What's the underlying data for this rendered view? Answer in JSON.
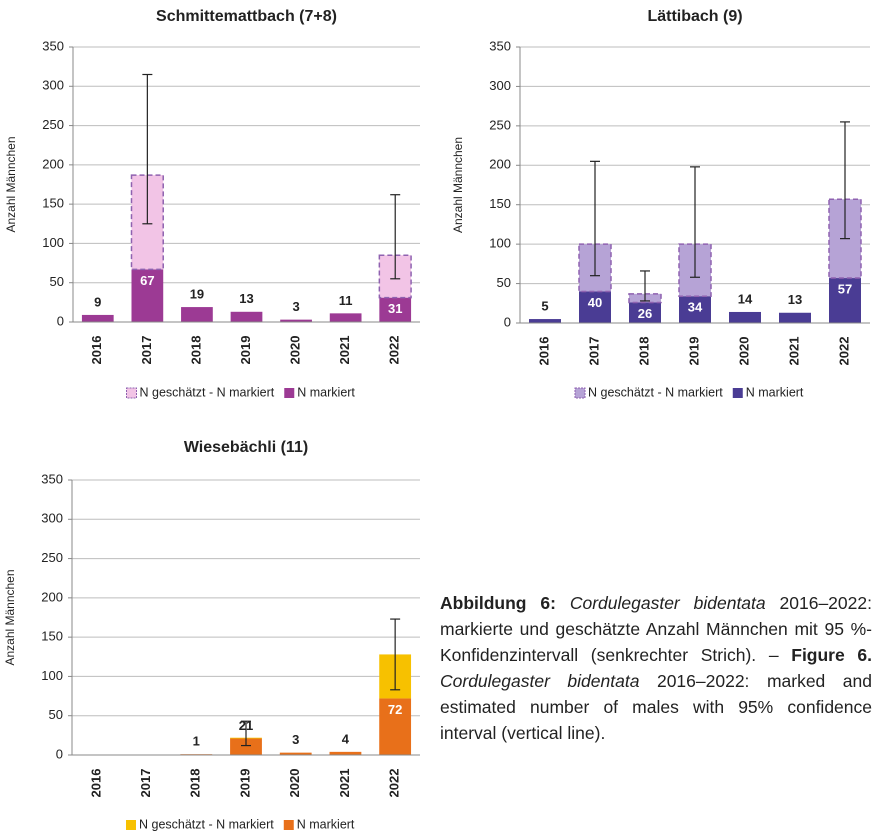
{
  "chart_data": [
    {
      "type": "bar",
      "title": "Schmittemattbach (7+8)",
      "y_label": "Anzahl Männchen",
      "categories": [
        "2016",
        "2017",
        "2018",
        "2019",
        "2020",
        "2021",
        "2022"
      ],
      "series": [
        {
          "name": "N markiert",
          "color": "#9c3a94",
          "dashed": false,
          "values": [
            9,
            67,
            19,
            13,
            3,
            11,
            31
          ]
        },
        {
          "name": "N geschätzt - N markiert",
          "color": "#f2c4e6",
          "dashed": true,
          "values": [
            null,
            120,
            null,
            null,
            null,
            null,
            54
          ]
        }
      ],
      "ci_low": [
        null,
        125,
        null,
        null,
        null,
        null,
        55
      ],
      "ci_high": [
        null,
        315,
        null,
        null,
        null,
        null,
        162
      ],
      "ylim": [
        0,
        350
      ],
      "yticks": [
        0,
        50,
        100,
        150,
        200,
        250,
        300,
        350
      ],
      "grid": true,
      "stacked": true,
      "legend_order": "reversed"
    },
    {
      "type": "bar",
      "title": "Lättibach (9)",
      "y_label": "Anzahl Männchen",
      "categories": [
        "2016",
        "2017",
        "2018",
        "2019",
        "2020",
        "2021",
        "2022"
      ],
      "series": [
        {
          "name": "N markiert",
          "color": "#4a3c94",
          "dashed": false,
          "values": [
            5,
            40,
            26,
            34,
            14,
            13,
            57
          ]
        },
        {
          "name": "N geschätzt - N markiert",
          "color": "#b6a3d6",
          "dashed": true,
          "values": [
            null,
            60,
            11,
            66,
            null,
            null,
            100
          ]
        }
      ],
      "ci_low": [
        null,
        60,
        28,
        58,
        null,
        null,
        107
      ],
      "ci_high": [
        null,
        205,
        66,
        198,
        null,
        null,
        255
      ],
      "ylim": [
        0,
        350
      ],
      "yticks": [
        0,
        50,
        100,
        150,
        200,
        250,
        300,
        350
      ],
      "grid": true,
      "stacked": true,
      "legend_order": "reversed"
    },
    {
      "type": "bar",
      "title": "Wiesebächli (11)",
      "y_label": "Anzahl Männchen",
      "categories": [
        "2016",
        "2017",
        "2018",
        "2019",
        "2020",
        "2021",
        "2022"
      ],
      "series": [
        {
          "name": "N markiert",
          "color": "#e8701a",
          "dashed": false,
          "values": [
            null,
            null,
            1,
            21,
            3,
            4,
            72
          ]
        },
        {
          "name": "N geschätzt - N markiert",
          "color": "#f7c100",
          "dashed": false,
          "values": [
            null,
            null,
            null,
            1,
            null,
            null,
            56
          ]
        }
      ],
      "ci_low": [
        null,
        null,
        null,
        12,
        null,
        null,
        83
      ],
      "ci_high": [
        null,
        null,
        null,
        43,
        null,
        null,
        173
      ],
      "ylim": [
        0,
        350
      ],
      "yticks": [
        0,
        50,
        100,
        150,
        200,
        250,
        300,
        350
      ],
      "grid": true,
      "stacked": true,
      "legend_order": "reversed"
    }
  ],
  "caption": [
    {
      "style": "bold",
      "text": "Abbildung 6: "
    },
    {
      "style": "italic",
      "text": "Cordulegaster bidentata"
    },
    {
      "style": "normal",
      "text": " 2016–2022: markierte und geschätzte Anzahl Männchen mit 95 %-Konfidenzintervall (senkrechter Strich). – "
    },
    {
      "style": "bold",
      "text": "Figure 6. "
    },
    {
      "style": "italic",
      "text": "Cordulegaster bidentata"
    },
    {
      "style": "normal",
      "text": " 2016–2022: marked and estimated number of males with 95% confidence interval (vertical line)."
    }
  ]
}
